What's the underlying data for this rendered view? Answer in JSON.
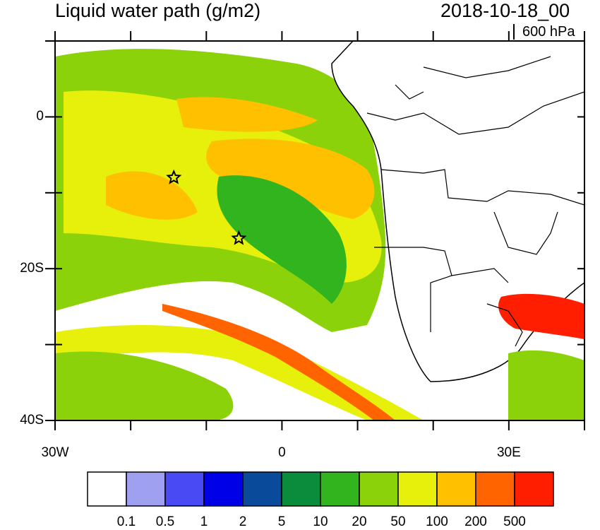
{
  "header": {
    "title": "Liquid water path (g/m2)",
    "date": "2018-10-18_00",
    "level": "600 hPa"
  },
  "axes": {
    "y_labels": [
      {
        "value": 0,
        "text": "0"
      },
      {
        "value": -20,
        "text": "20S"
      },
      {
        "value": -40,
        "text": "40S"
      }
    ],
    "x_labels": [
      {
        "value": -30,
        "text": "30W"
      },
      {
        "value": 0,
        "text": "0"
      },
      {
        "value": 30,
        "text": "30E"
      }
    ],
    "lon_range": [
      -30,
      40
    ],
    "lat_range": [
      -40,
      10
    ]
  },
  "colorbar": {
    "colors": [
      "#ffffff",
      "#a0a0f0",
      "#4a4af5",
      "#0000e6",
      "#0a4a9b",
      "#0a8c3c",
      "#32b41e",
      "#8cd20a",
      "#e6f00a",
      "#ffc000",
      "#ff6400",
      "#ff1e00"
    ],
    "labels": [
      "0.1",
      "0.5",
      "1",
      "2",
      "5",
      "10",
      "20",
      "50",
      "100",
      "200",
      "500"
    ]
  },
  "markers": [
    {
      "name": "star-marker-west",
      "lon": -14.3,
      "lat": -8
    },
    {
      "name": "star-marker-center",
      "lon": -5.7,
      "lat": -16
    }
  ]
}
